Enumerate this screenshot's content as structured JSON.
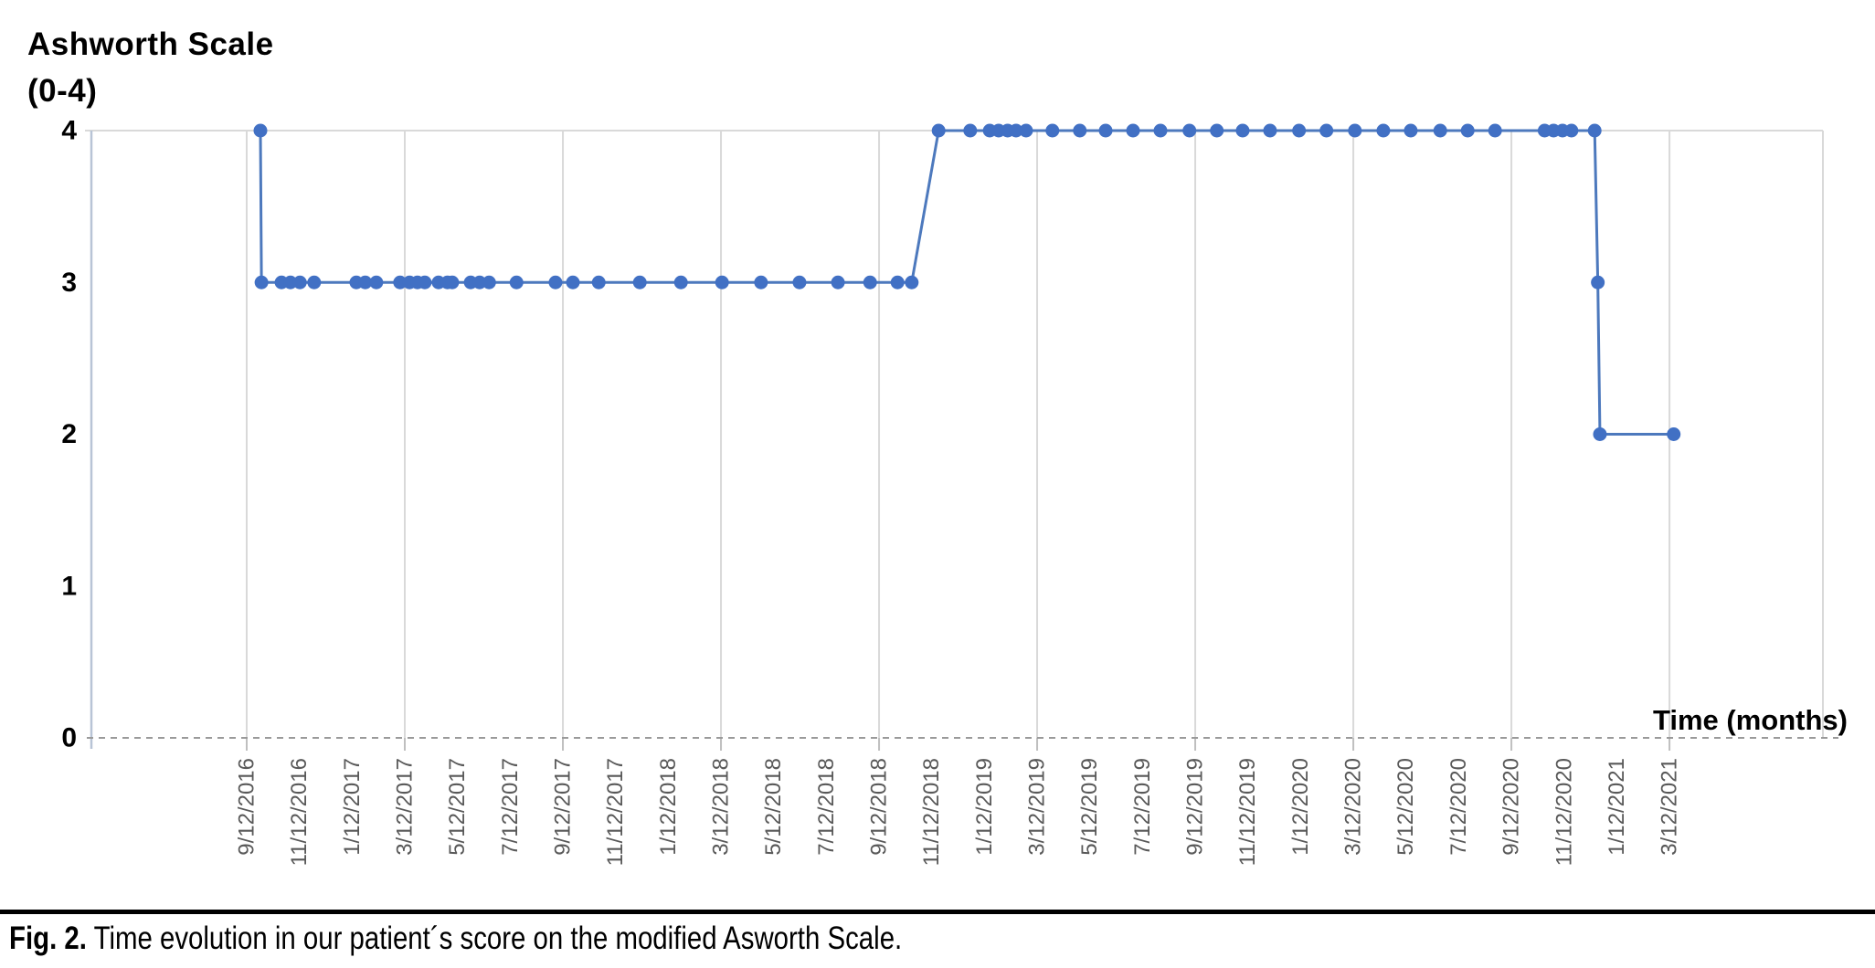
{
  "figure": {
    "caption": {
      "label": "Fig. 2.",
      "text": "Time evolution in our patient´s score on the modified Asworth Scale."
    }
  },
  "chart_data": {
    "type": "line",
    "title_line1": "Ashworth Scale",
    "title_line2": "(0-4)",
    "ylabel": "Ashworth Scale (0-4)",
    "xlabel": "Time (months)",
    "ylim": [
      0,
      4
    ],
    "yticks": [
      0,
      1,
      2,
      3,
      4
    ],
    "categories": [
      "9/12/2016",
      "11/12/2016",
      "1/12/2017",
      "3/12/2017",
      "5/12/2017",
      "7/12/2017",
      "9/12/2017",
      "11/12/2017",
      "1/12/2018",
      "3/12/2018",
      "5/12/2018",
      "7/12/2018",
      "9/12/2018",
      "11/12/2018",
      "1/12/2019",
      "3/12/2019",
      "5/12/2019",
      "7/12/2019",
      "9/12/2019",
      "11/12/2019",
      "1/12/2020",
      "3/12/2020",
      "5/12/2020",
      "7/12/2020",
      "9/12/2020",
      "11/12/2020",
      "1/12/2021",
      "3/12/2021"
    ],
    "x_unit": "category_index (each tick = 2 months)",
    "gridline_category_indexes": [
      0,
      3,
      6,
      9,
      12,
      15,
      18,
      21,
      24,
      27
    ],
    "legend": "none",
    "series": [
      {
        "name": "Modified Ashworth Scale score",
        "points": [
          [
            0.26,
            4
          ],
          [
            0.28,
            3
          ],
          [
            0.66,
            3
          ],
          [
            0.83,
            3
          ],
          [
            1.01,
            3
          ],
          [
            1.28,
            3
          ],
          [
            2.08,
            3
          ],
          [
            2.25,
            3
          ],
          [
            2.46,
            3
          ],
          [
            2.91,
            3
          ],
          [
            3.09,
            3
          ],
          [
            3.24,
            3
          ],
          [
            3.38,
            3
          ],
          [
            3.64,
            3
          ],
          [
            3.81,
            3
          ],
          [
            3.9,
            3
          ],
          [
            4.25,
            3
          ],
          [
            4.42,
            3
          ],
          [
            4.6,
            3
          ],
          [
            5.12,
            3
          ],
          [
            5.86,
            3
          ],
          [
            6.19,
            3
          ],
          [
            6.68,
            3
          ],
          [
            7.46,
            3
          ],
          [
            8.24,
            3
          ],
          [
            9.02,
            3
          ],
          [
            9.76,
            3
          ],
          [
            10.49,
            3
          ],
          [
            11.22,
            3
          ],
          [
            11.83,
            3
          ],
          [
            12.35,
            3
          ],
          [
            12.62,
            3
          ],
          [
            13.13,
            4
          ],
          [
            13.73,
            4
          ],
          [
            14.1,
            4
          ],
          [
            14.27,
            4
          ],
          [
            14.44,
            4
          ],
          [
            14.6,
            4
          ],
          [
            14.79,
            4
          ],
          [
            15.29,
            4
          ],
          [
            15.81,
            4
          ],
          [
            16.3,
            4
          ],
          [
            16.82,
            4
          ],
          [
            17.34,
            4
          ],
          [
            17.89,
            4
          ],
          [
            18.41,
            4
          ],
          [
            18.9,
            4
          ],
          [
            19.42,
            4
          ],
          [
            19.97,
            4
          ],
          [
            20.49,
            4
          ],
          [
            21.03,
            4
          ],
          [
            21.57,
            4
          ],
          [
            22.09,
            4
          ],
          [
            22.65,
            4
          ],
          [
            23.17,
            4
          ],
          [
            23.69,
            4
          ],
          [
            24.63,
            4
          ],
          [
            24.8,
            4
          ],
          [
            24.97,
            4
          ],
          [
            25.14,
            4
          ],
          [
            25.58,
            4
          ],
          [
            25.64,
            3
          ],
          [
            25.68,
            2
          ],
          [
            27.08,
            2
          ]
        ]
      }
    ],
    "colors": {
      "point": "#4170c4",
      "line": "#4d79bd",
      "grid": "#d9d9d9",
      "frame": "#d9d9d9",
      "left_axis": "#b8c4d6",
      "zero_axis": "#9a9a9a",
      "tick": "#bfbfbf",
      "x_tick_text": "#595959",
      "axis_text": "#000000"
    }
  }
}
